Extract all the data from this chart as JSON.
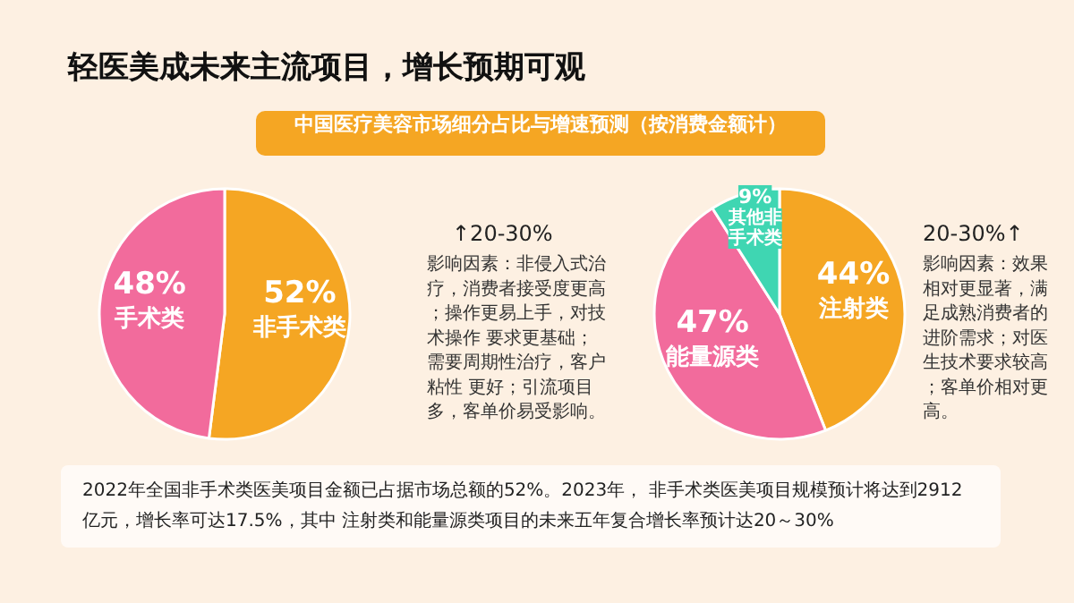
{
  "chart_data": [
    {
      "type": "pie",
      "title": "轻医美成未来主流项目，增长预期可观",
      "subtitle": "中国医疗美容市场细分占比与增速预测（按消费金额计）",
      "categories": [
        "非手术类",
        "手术类"
      ],
      "values": [
        52,
        48
      ],
      "colors": [
        "#f5a623",
        "#f26b9c"
      ],
      "value_labels": [
        "52%",
        "48%"
      ]
    },
    {
      "type": "pie",
      "categories": [
        "注射类",
        "能量源类",
        "其他非手术类"
      ],
      "values": [
        44,
        47,
        9
      ],
      "colors": [
        "#f5a623",
        "#f26b9c",
        "#3fd6b2"
      ],
      "value_labels": [
        "44%",
        "47%",
        "9%"
      ],
      "annotations": [
        "↑20-30%",
        "影响因素：非侵入式治疗，消费者接受度更高；操作更易上手，对技术操作 要求更基础；需要周期性治疗，客户粘性 更好；引流项目多，客单价易受影响。",
        "20-30%↑",
        "影响因素：效果相对更显著，满足成熟消费者的进阶需求；对医生技术要求较高；客单价相对更高。",
        "2022年全国非手术类医美项目金额已占据市场总额的52%。2023年， 非手术类医美项目规模预计将达到2912亿元，增长率可达17.5%，其中 注射类和能量源类项目的未来五年复合增长率预计达20～30%"
      ]
    }
  ]
}
